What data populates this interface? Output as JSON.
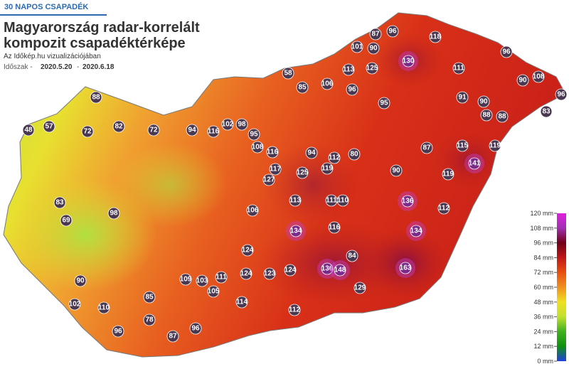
{
  "header": {
    "tag": "30 NAPOS CSAPADÉK",
    "title_lines": [
      "Magyarország radar-korrelált",
      "kompozit csapadéktérképe"
    ],
    "subtitle": "Az Időkép.hu vizualizációjában",
    "period_label": "Időszak -",
    "period_start": "2020.5.20",
    "period_sep": "-",
    "period_end": "2020.6.18"
  },
  "legend": {
    "ticks": [
      {
        "value": 120,
        "label": "120 mm"
      },
      {
        "value": 108,
        "label": "108 mm"
      },
      {
        "value": 96,
        "label": "96 mm"
      },
      {
        "value": 84,
        "label": "84 mm"
      },
      {
        "value": 72,
        "label": "72 mm"
      },
      {
        "value": 60,
        "label": "60 mm"
      },
      {
        "value": 48,
        "label": "48 mm"
      },
      {
        "value": 36,
        "label": "36 mm"
      },
      {
        "value": 24,
        "label": "24 mm"
      },
      {
        "value": 12,
        "label": "12 mm"
      },
      {
        "value": 0,
        "label": "0 mm"
      }
    ],
    "colors": [
      "#e020e0",
      "#a030b0",
      "#700018",
      "#c01818",
      "#e85010",
      "#f09020",
      "#f0e020",
      "#c0e030",
      "#40b020",
      "#109010",
      "#2040e0"
    ]
  },
  "stations": [
    96,
    87,
    118,
    101,
    90,
    130,
    96,
    113,
    125,
    111,
    90,
    108,
    96,
    83,
    58,
    85,
    106,
    96,
    95,
    91,
    90,
    88,
    88,
    88,
    57,
    48,
    72,
    82,
    72,
    94,
    116,
    102,
    98,
    108,
    95,
    116,
    94,
    112,
    80,
    87,
    115,
    119,
    141,
    119,
    117,
    125,
    119,
    90,
    127,
    113,
    111,
    110,
    136,
    112,
    83,
    106,
    134,
    116,
    134,
    124,
    136,
    148,
    163,
    124,
    123,
    124,
    111,
    109,
    105,
    103,
    90,
    102,
    110,
    85,
    78,
    87,
    96,
    96,
    114,
    112,
    129,
    84,
    98,
    69
  ]
}
